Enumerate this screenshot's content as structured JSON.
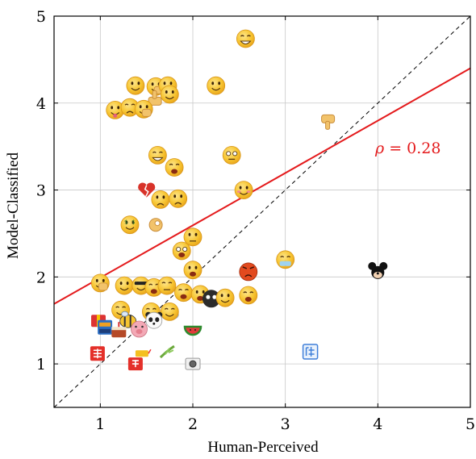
{
  "chart_data": {
    "type": "scatter",
    "xlabel": "Human-Perceived",
    "ylabel": "Model-Classified",
    "xlim": [
      0.5,
      5
    ],
    "ylim": [
      0.5,
      5
    ],
    "xticks": [
      "1",
      "2",
      "3",
      "4",
      "5"
    ],
    "yticks": [
      "1",
      "2",
      "3",
      "4",
      "5"
    ],
    "grid": true,
    "annotation": "ρ = 0.28",
    "annotation_parts": {
      "symbol": "ρ",
      "rest": " = 0.28"
    },
    "colors": {
      "regression": "#e41a1c",
      "diagonal": "#000000",
      "grid": "#c8c8c8",
      "emoji_face": "#f7c531",
      "emoji_red": "#e0422d",
      "emoji_blue": "#3f7fd9"
    },
    "reference_line": {
      "style": "dashed",
      "from": [
        0.5,
        0.5
      ],
      "to": [
        5,
        5
      ]
    },
    "regression_line": {
      "from": [
        0.5,
        1.69
      ],
      "to": [
        5,
        4.4
      ]
    },
    "points": [
      {
        "x": 2.57,
        "y": 4.74,
        "icon": "smirk-face-icon"
      },
      {
        "x": 1.38,
        "y": 4.2,
        "icon": "rolling-eyes-face-icon"
      },
      {
        "x": 1.6,
        "y": 4.19,
        "icon": "facepalm-face-icon"
      },
      {
        "x": 1.73,
        "y": 4.2,
        "icon": "sweat-face-icon"
      },
      {
        "x": 1.75,
        "y": 4.1,
        "icon": "sweat-face-icon"
      },
      {
        "x": 2.25,
        "y": 4.2,
        "icon": "smug-face-icon"
      },
      {
        "x": 1.6,
        "y": 4.05,
        "icon": "thumbs-up-icon"
      },
      {
        "x": 1.16,
        "y": 3.92,
        "icon": "tongue-face-icon"
      },
      {
        "x": 1.32,
        "y": 3.95,
        "icon": "tired-face-icon"
      },
      {
        "x": 1.47,
        "y": 3.93,
        "icon": "hand-face-icon"
      },
      {
        "x": 3.47,
        "y": 3.79,
        "icon": "thumbs-down-icon"
      },
      {
        "x": 1.62,
        "y": 3.4,
        "icon": "grin-face-icon"
      },
      {
        "x": 1.8,
        "y": 3.26,
        "icon": "crying-face-icon"
      },
      {
        "x": 2.42,
        "y": 3.4,
        "icon": "dizzy-face-icon"
      },
      {
        "x": 1.5,
        "y": 3.0,
        "icon": "broken-heart-icon"
      },
      {
        "x": 2.55,
        "y": 3.0,
        "icon": "shy-face-icon"
      },
      {
        "x": 1.65,
        "y": 2.89,
        "icon": "sad-face-icon"
      },
      {
        "x": 1.84,
        "y": 2.9,
        "icon": "worried-face-icon"
      },
      {
        "x": 1.32,
        "y": 2.6,
        "icon": "money-face-icon"
      },
      {
        "x": 1.6,
        "y": 2.6,
        "icon": "ok-hand-icon"
      },
      {
        "x": 2.0,
        "y": 2.46,
        "icon": "hmm-face-icon"
      },
      {
        "x": 1.88,
        "y": 2.3,
        "icon": "spiral-eyes-face-icon"
      },
      {
        "x": 3.0,
        "y": 2.2,
        "icon": "sick-face-icon"
      },
      {
        "x": 4.0,
        "y": 2.06,
        "icon": "mouse-character-icon"
      },
      {
        "x": 2.6,
        "y": 2.06,
        "icon": "angry-face-icon"
      },
      {
        "x": 2.0,
        "y": 2.08,
        "icon": "surprised-face-icon"
      },
      {
        "x": 1.0,
        "y": 1.93,
        "icon": "hands-face-icon"
      },
      {
        "x": 1.26,
        "y": 1.9,
        "icon": "smile-face-icon"
      },
      {
        "x": 1.44,
        "y": 1.9,
        "icon": "cool-face-icon"
      },
      {
        "x": 1.58,
        "y": 1.88,
        "icon": "laugh-face-icon"
      },
      {
        "x": 1.72,
        "y": 1.9,
        "icon": "sleepy-face-icon"
      },
      {
        "x": 1.9,
        "y": 1.82,
        "icon": "yawn-face-icon"
      },
      {
        "x": 2.08,
        "y": 1.8,
        "icon": "shock-face-icon"
      },
      {
        "x": 2.2,
        "y": 1.75,
        "icon": "black-face-icon"
      },
      {
        "x": 2.35,
        "y": 1.76,
        "icon": "drool-face-icon"
      },
      {
        "x": 2.6,
        "y": 1.79,
        "icon": "yell-face-icon"
      },
      {
        "x": 1.22,
        "y": 1.62,
        "icon": "blink-face-icon"
      },
      {
        "x": 1.3,
        "y": 1.5,
        "icon": "bee-icon"
      },
      {
        "x": 1.55,
        "y": 1.6,
        "icon": "cheer-face-icon"
      },
      {
        "x": 1.75,
        "y": 1.6,
        "icon": "cloud-face-icon"
      },
      {
        "x": 0.98,
        "y": 1.5,
        "icon": "gift-icon"
      },
      {
        "x": 1.05,
        "y": 1.42,
        "icon": "mouse-on-block-icon"
      },
      {
        "x": 1.2,
        "y": 1.38,
        "icon": "cake-icon"
      },
      {
        "x": 1.42,
        "y": 1.4,
        "icon": "pig-face-icon"
      },
      {
        "x": 1.58,
        "y": 1.5,
        "icon": "panda-icon"
      },
      {
        "x": 2.0,
        "y": 1.4,
        "icon": "watermelon-icon"
      },
      {
        "x": 0.97,
        "y": 1.12,
        "icon": "fortune-charm-icon"
      },
      {
        "x": 1.45,
        "y": 1.12,
        "icon": "firecracker-icon"
      },
      {
        "x": 1.72,
        "y": 1.13,
        "icon": "bamboo-icon"
      },
      {
        "x": 1.38,
        "y": 1.0,
        "icon": "red-tag-icon"
      },
      {
        "x": 2.0,
        "y": 1.0,
        "icon": "camera-icon"
      },
      {
        "x": 3.27,
        "y": 1.14,
        "icon": "blue-character-icon"
      }
    ]
  }
}
